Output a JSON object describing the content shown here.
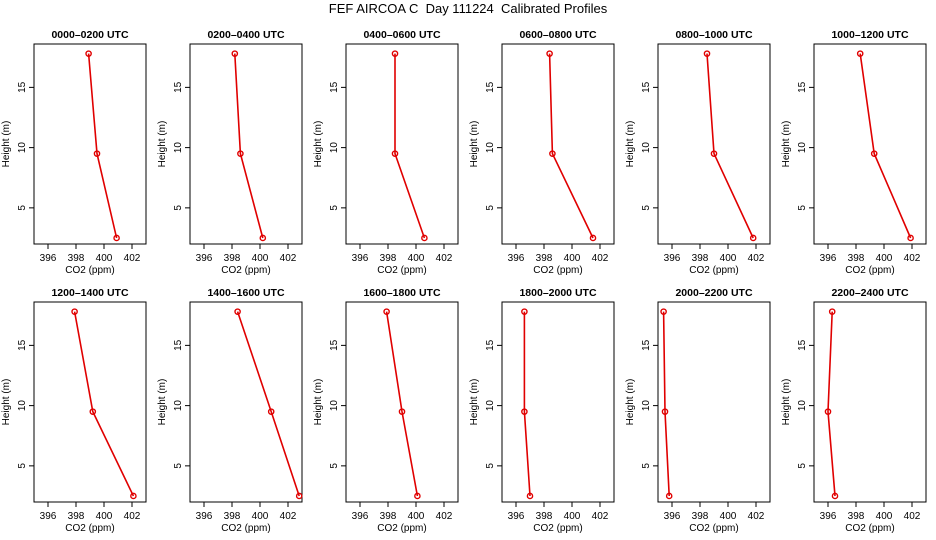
{
  "title": "FEF AIRCOA C  Day 111224  Calibrated Profiles",
  "chart_data": {
    "type": "line",
    "xlabel": "CO2 (ppm)",
    "ylabel": "Height (m)",
    "xlim": [
      395,
      403
    ],
    "ylim": [
      2,
      18.6
    ],
    "xticks": [
      396,
      398,
      400,
      402
    ],
    "yticks": [
      5,
      10,
      15
    ],
    "grid": false,
    "heights": [
      17.8,
      9.5,
      2.5
    ],
    "series": [
      {
        "name": "0000–0200 UTC",
        "x": [
          398.9,
          399.5,
          400.9
        ],
        "y": [
          17.8,
          9.5,
          2.5
        ]
      },
      {
        "name": "0200–0400 UTC",
        "x": [
          398.2,
          398.6,
          400.2
        ],
        "y": [
          17.8,
          9.5,
          2.5
        ]
      },
      {
        "name": "0400–0600 UTC",
        "x": [
          398.5,
          398.5,
          400.6
        ],
        "y": [
          17.8,
          9.5,
          2.5
        ]
      },
      {
        "name": "0600–0800 UTC",
        "x": [
          398.4,
          398.6,
          401.5
        ],
        "y": [
          17.8,
          9.5,
          2.5
        ]
      },
      {
        "name": "0800–1000 UTC",
        "x": [
          398.5,
          399.0,
          401.8
        ],
        "y": [
          17.8,
          9.5,
          2.5
        ]
      },
      {
        "name": "1000–1200 UTC",
        "x": [
          398.3,
          399.3,
          401.9
        ],
        "y": [
          17.8,
          9.5,
          2.5
        ]
      },
      {
        "name": "1200–1400 UTC",
        "x": [
          397.9,
          399.2,
          402.1
        ],
        "y": [
          17.8,
          9.5,
          2.5
        ]
      },
      {
        "name": "1400–1600 UTC",
        "x": [
          398.4,
          400.8,
          402.8
        ],
        "y": [
          17.8,
          9.5,
          2.5
        ]
      },
      {
        "name": "1600–1800 UTC",
        "x": [
          397.9,
          399.0,
          400.1
        ],
        "y": [
          17.8,
          9.5,
          2.5
        ]
      },
      {
        "name": "1800–2000 UTC",
        "x": [
          396.6,
          396.6,
          397.0
        ],
        "y": [
          17.8,
          9.5,
          2.5
        ]
      },
      {
        "name": "2000–2200 UTC",
        "x": [
          395.4,
          395.5,
          395.8
        ],
        "y": [
          17.8,
          9.5,
          2.5
        ]
      },
      {
        "name": "2200–2400 UTC",
        "x": [
          396.3,
          396.0,
          396.5
        ],
        "y": [
          17.8,
          9.5,
          2.5
        ]
      }
    ]
  },
  "colors": {
    "series": "#e00000",
    "axis": "#000000"
  }
}
